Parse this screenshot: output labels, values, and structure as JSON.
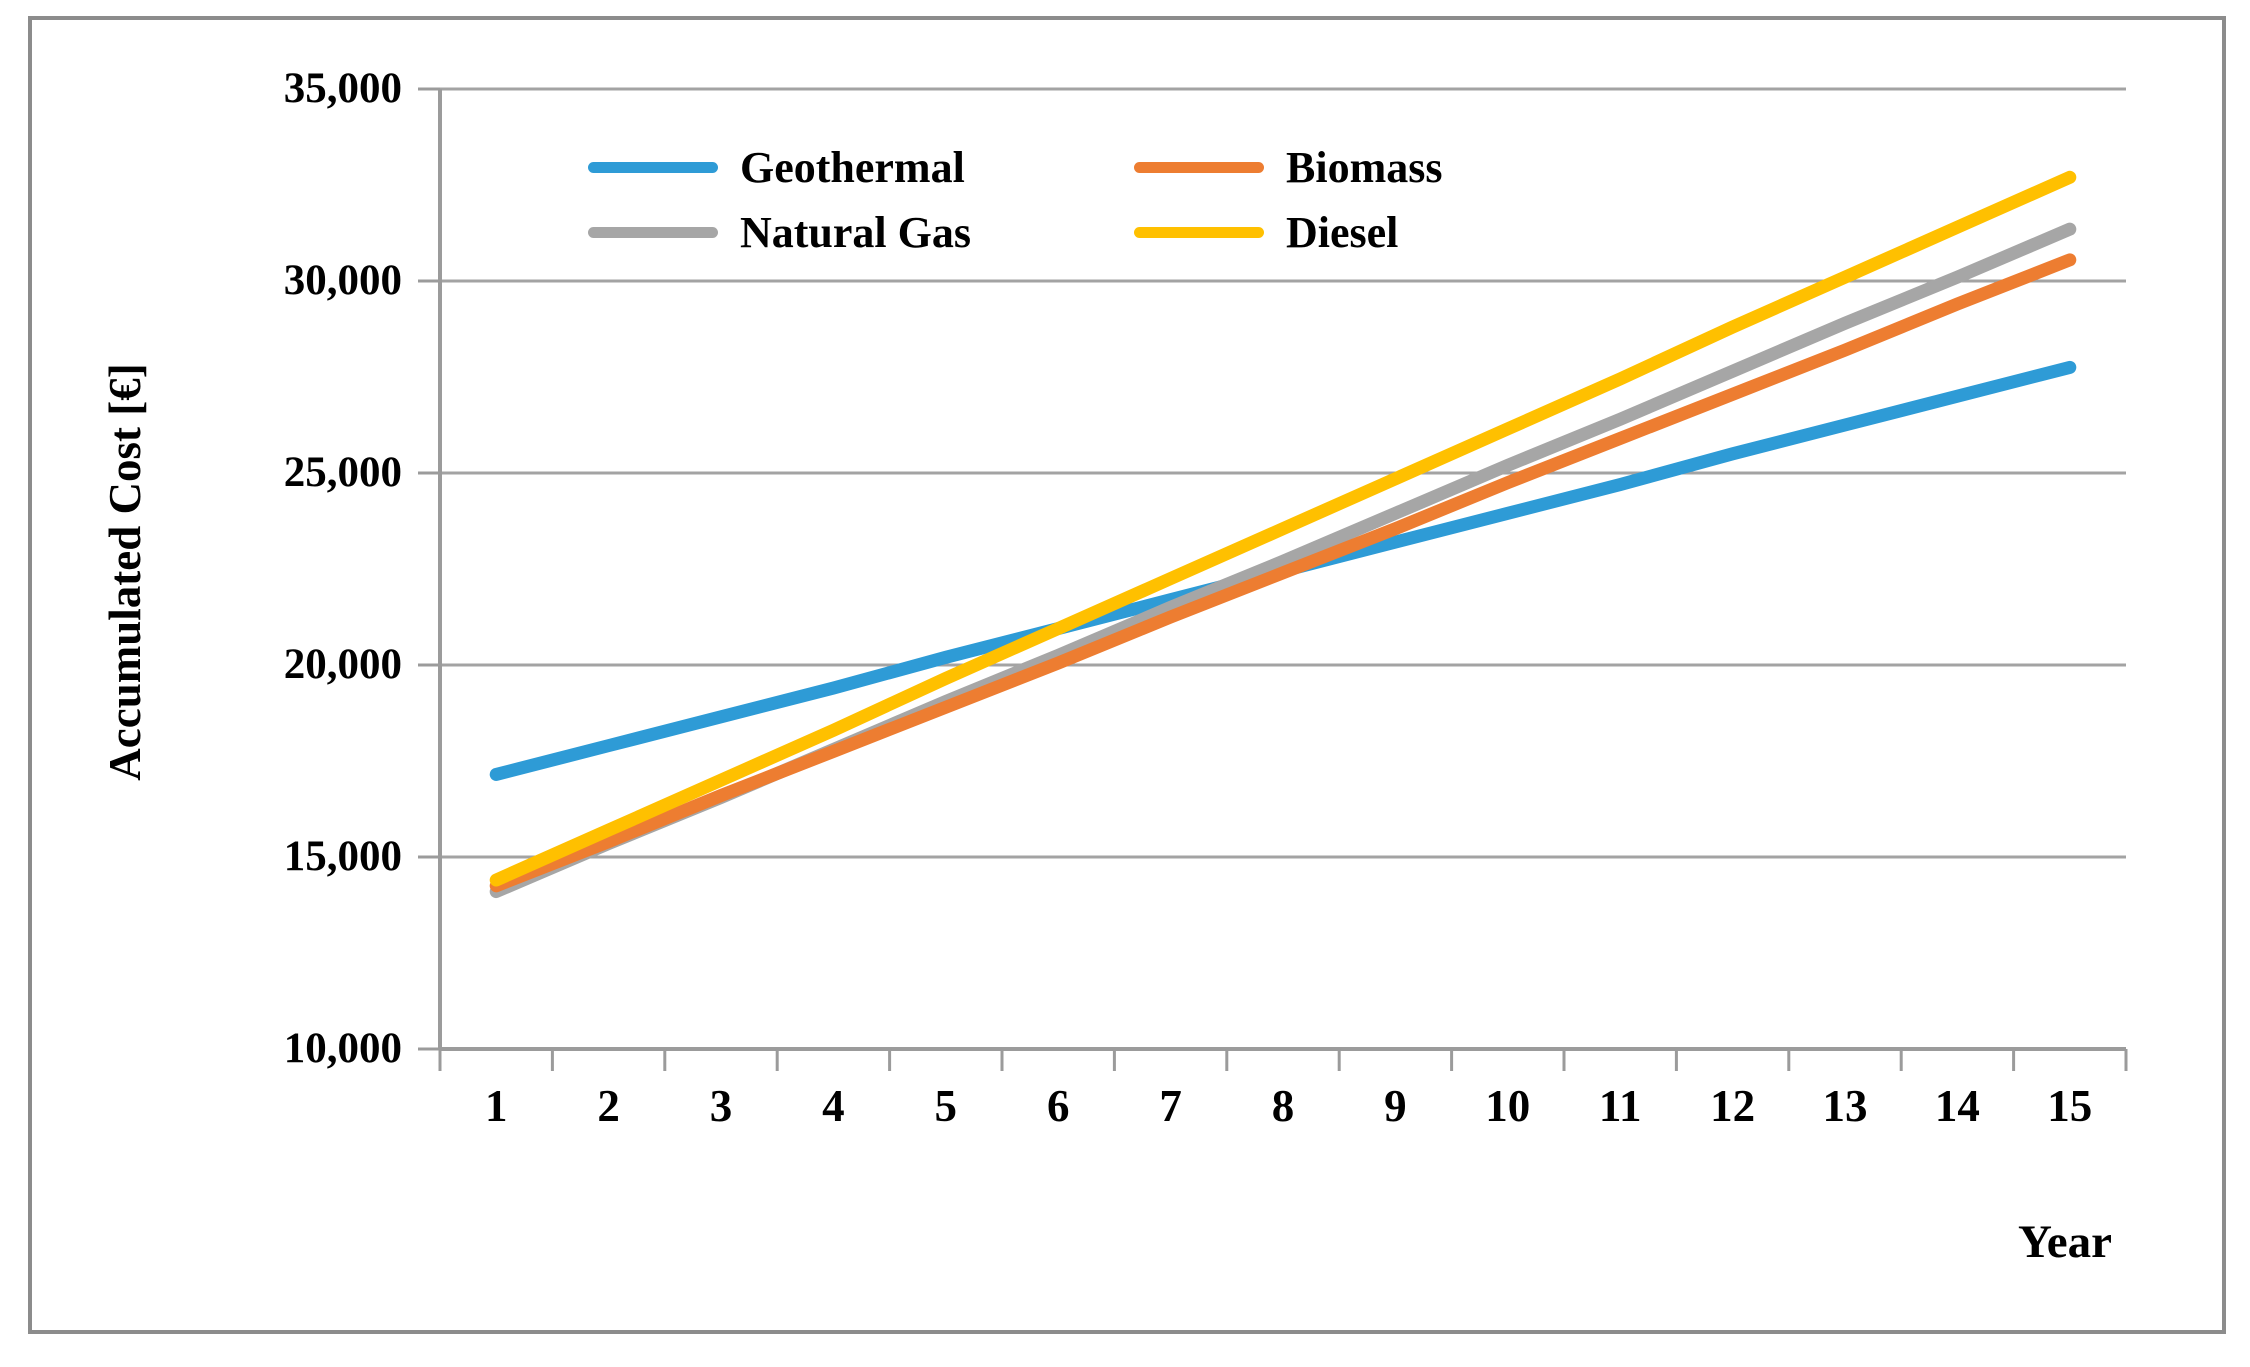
{
  "chart_data": {
    "type": "line",
    "title": "",
    "xlabel": "Year",
    "ylabel": "Accumulated Cost [€]",
    "x": [
      1,
      2,
      3,
      4,
      5,
      6,
      7,
      8,
      9,
      10,
      11,
      12,
      13,
      14,
      15
    ],
    "x_tick_labels": [
      "1",
      "2",
      "3",
      "4",
      "5",
      "6",
      "7",
      "8",
      "9",
      "10",
      "11",
      "12",
      "13",
      "14",
      "15"
    ],
    "y_tick_labels": [
      "35,000",
      "30,000",
      "25,000",
      "20,000",
      "15,000",
      "10,000"
    ],
    "y_tick_values": [
      35000,
      30000,
      25000,
      20000,
      15000,
      10000
    ],
    "ylim": [
      10000,
      35000
    ],
    "grid": true,
    "legend_position": "top-inside-two-columns",
    "series": [
      {
        "name": "Geothermal",
        "color": "#2E9BD6",
        "values": [
          17150,
          17900,
          18650,
          19400,
          20200,
          20950,
          21700,
          22450,
          23200,
          23950,
          24700,
          25500,
          26250,
          27000,
          27750
        ]
      },
      {
        "name": "Natural Gas",
        "color": "#A6A6A6",
        "values": [
          14100,
          15350,
          16550,
          17800,
          19050,
          20250,
          21500,
          22700,
          23950,
          25200,
          26400,
          27650,
          28900,
          30100,
          31350
        ]
      },
      {
        "name": "Biomass",
        "color": "#ED7D31",
        "values": [
          14250,
          15400,
          16600,
          17750,
          18900,
          20050,
          21250,
          22400,
          23550,
          24750,
          25900,
          27050,
          28200,
          29400,
          30550
        ]
      },
      {
        "name": "Diesel",
        "color": "#FFC000",
        "values": [
          14400,
          15700,
          17000,
          18300,
          19650,
          20950,
          22250,
          23550,
          24850,
          26150,
          27450,
          28800,
          30100,
          31400,
          32700
        ]
      }
    ]
  },
  "colors": {
    "gridline": "#A3A3A3",
    "axis": "#9B9B9B",
    "frame": "#8C8C8C",
    "text": "#000000"
  }
}
